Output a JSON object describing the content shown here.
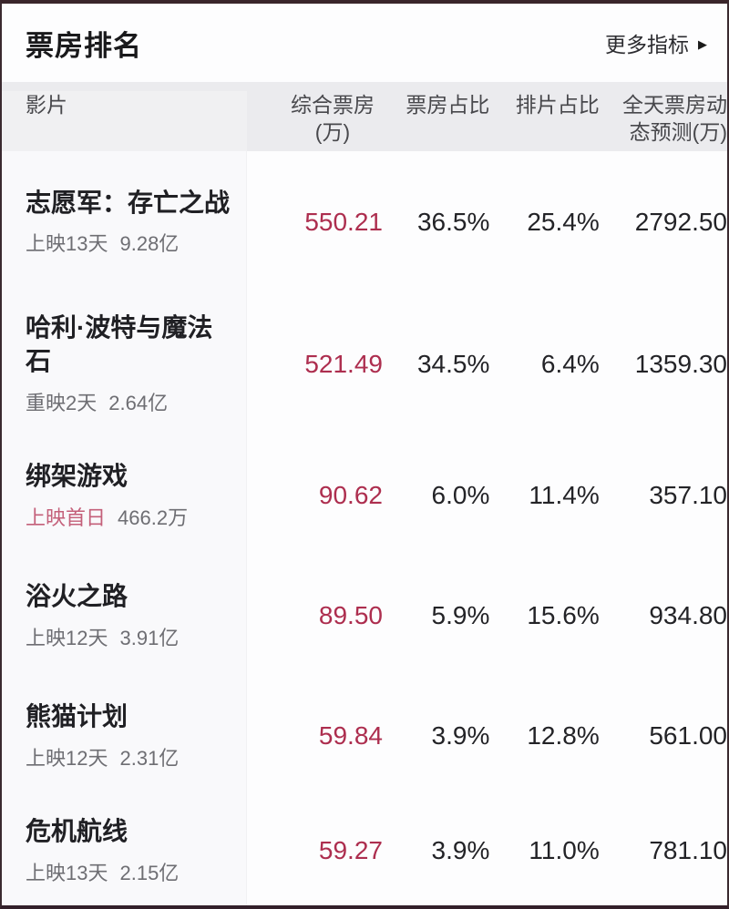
{
  "header": {
    "title": "票房排名",
    "more_label": "更多指标",
    "more_arrow_icon": "▶"
  },
  "columns": [
    {
      "label": "影片"
    },
    {
      "label": "综合票房(万)"
    },
    {
      "label": "票房占比"
    },
    {
      "label": "排片占比"
    },
    {
      "label": "全天票房动态预测(万)"
    }
  ],
  "rows": [
    {
      "title": "志愿军：存亡之战",
      "sub_label": "上映13天",
      "sub_value": "9.28亿",
      "gross": "550.21",
      "share": "36.5%",
      "screening": "25.4%",
      "forecast": "2792.50"
    },
    {
      "title": "哈利·波特与魔法石",
      "sub_label": "重映2天",
      "sub_value": "2.64亿",
      "gross": "521.49",
      "share": "34.5%",
      "screening": "6.4%",
      "forecast": "1359.30"
    },
    {
      "title": "绑架游戏",
      "sub_label": "上映首日",
      "sub_value": "466.2万",
      "gross": "90.62",
      "share": "6.0%",
      "screening": "11.4%",
      "forecast": "357.10"
    },
    {
      "title": "浴火之路",
      "sub_label": "上映12天",
      "sub_value": "3.91亿",
      "gross": "89.50",
      "share": "5.9%",
      "screening": "15.6%",
      "forecast": "934.80"
    },
    {
      "title": "熊猫计划",
      "sub_label": "上映12天",
      "sub_value": "2.31亿",
      "gross": "59.84",
      "share": "3.9%",
      "screening": "12.8%",
      "forecast": "561.00"
    },
    {
      "title": "危机航线",
      "sub_label": "上映13天",
      "sub_value": "2.15亿",
      "gross": "59.27",
      "share": "3.9%",
      "screening": "11.0%",
      "forecast": "781.10"
    }
  ],
  "colors": {
    "accent_red": "#ad2e4f",
    "highlight_rose": "#c4607a",
    "header_band": "#ebebee",
    "frame_border": "#3a252b",
    "title_text": "#19191b",
    "subtitle_gray": "#6e6e73"
  }
}
